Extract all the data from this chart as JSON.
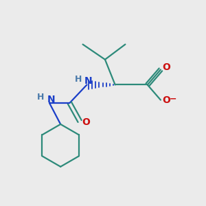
{
  "bg_color": "#ebebeb",
  "bond_color": "#2d8a7a",
  "N_color": "#1a3ec8",
  "O_color": "#cc1111",
  "H_color": "#4a7aaa",
  "lw": 1.6,
  "fs": 10,
  "xlim": [
    0,
    10
  ],
  "ylim": [
    0,
    10
  ]
}
